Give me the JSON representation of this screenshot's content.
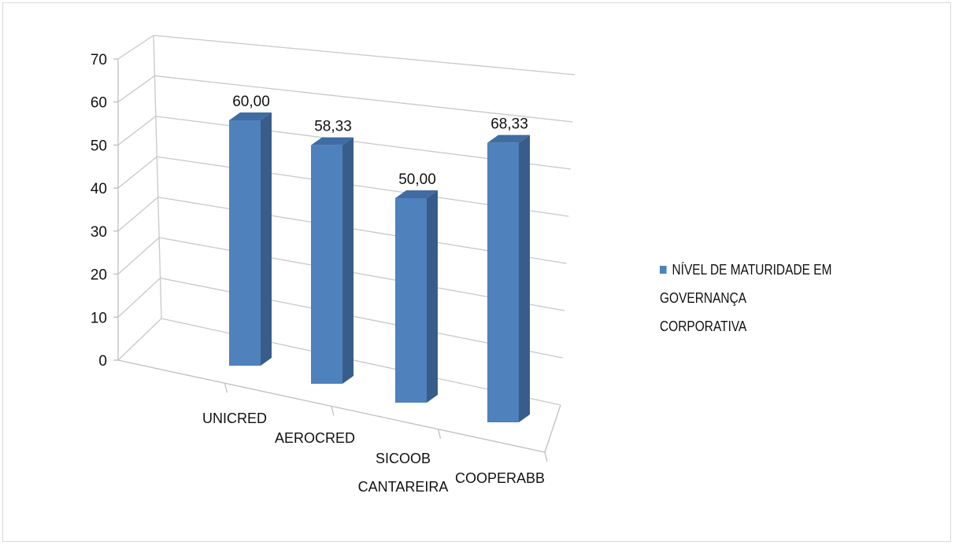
{
  "chart_data": {
    "type": "bar",
    "categories": [
      "UNICRED",
      "AEROCRED",
      "SICOOB CANTAREIRA",
      "COOPERABB"
    ],
    "category_lines": [
      [
        "UNICRED"
      ],
      [
        "AEROCRED"
      ],
      [
        "SICOOB",
        "CANTAREIRA"
      ],
      [
        "COOPERABB"
      ]
    ],
    "series": [
      {
        "name": "NÍVEL DE MATURIDADE EM GOVERNANÇA CORPORATIVA",
        "values": [
          60.0,
          58.33,
          50.0,
          68.33
        ],
        "data_labels": [
          "60,00",
          "58,33",
          "50,00",
          "68,33"
        ],
        "color": "#4f81bd"
      }
    ],
    "y_ticks": [
      "0",
      "10",
      "20",
      "30",
      "40",
      "50",
      "60",
      "70"
    ],
    "ylim": [
      0,
      70
    ],
    "grid": true,
    "style": "3d-perspective",
    "legend_position": "right"
  },
  "legend": {
    "line1": "NÍVEL DE MATURIDADE EM GOVERNANÇA",
    "line2": "CORPORATIVA"
  }
}
